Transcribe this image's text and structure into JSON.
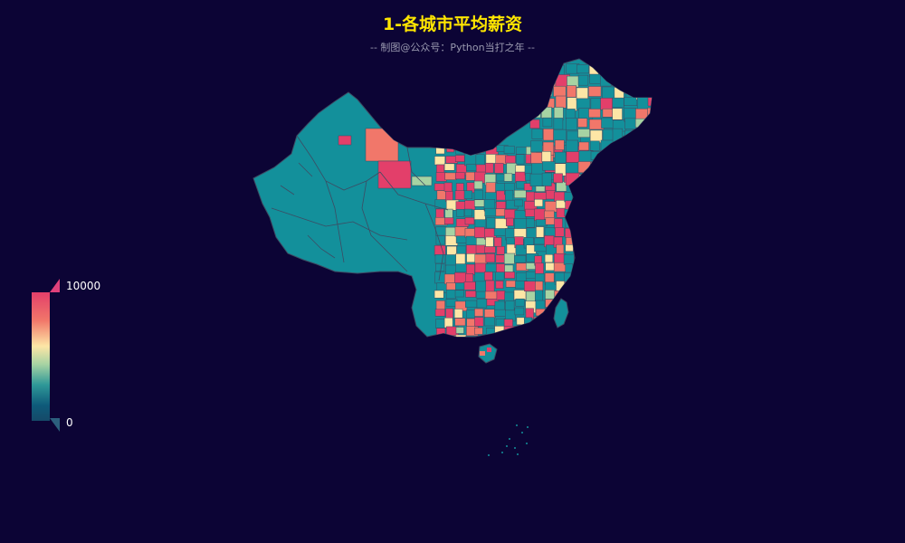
{
  "title": "1-各城市平均薪资",
  "subtitle": "-- 制图@公众号：Python当打之年 --",
  "visual_map": {
    "max_label": "10000",
    "min_label": "0",
    "colors": [
      "#e33f6a",
      "#f1776a",
      "#fde6a6",
      "#a7d3a3",
      "#2f9898",
      "#0e5a7a"
    ]
  },
  "map": {
    "base_color": "#13909b",
    "border_color": "#3d4b63",
    "background": "#0c0435"
  }
}
